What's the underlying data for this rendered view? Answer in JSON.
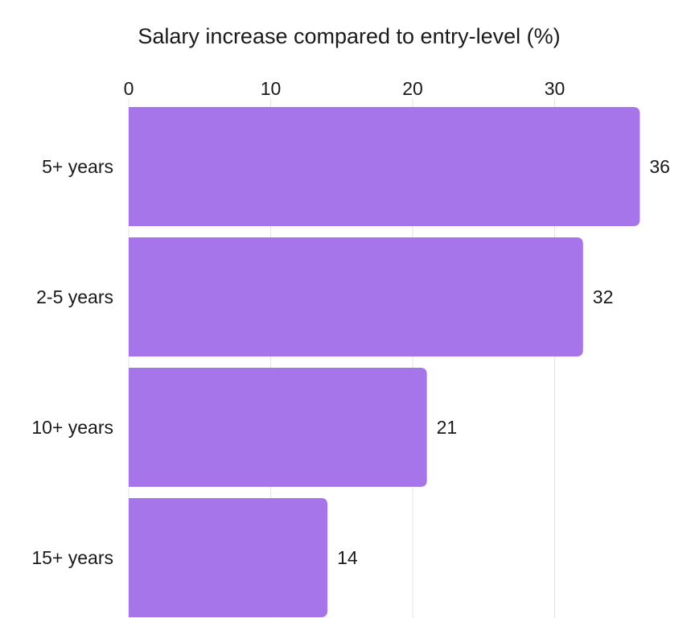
{
  "chart_data": {
    "type": "bar",
    "orientation": "horizontal",
    "title": "Salary increase compared to entry-level (%)",
    "xlabel": "",
    "ylabel": "",
    "categories": [
      "5+ years",
      "2-5 years",
      "10+ years",
      "15+ years"
    ],
    "values": [
      36,
      32,
      21,
      14
    ],
    "xlim": [
      0,
      36
    ],
    "x_ticks": [
      0,
      10,
      20,
      30
    ],
    "x_axis_position": "top",
    "grid": true,
    "legend": "none",
    "bar_color": "#a675e9",
    "gridline_color": "#e3e3e3"
  }
}
